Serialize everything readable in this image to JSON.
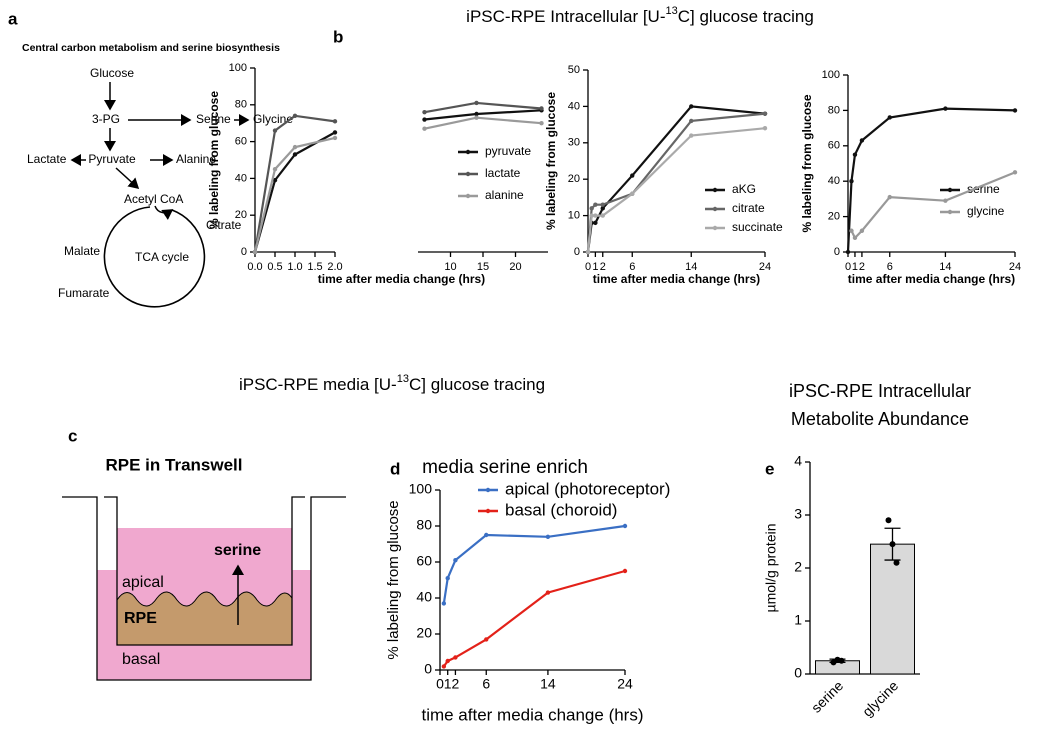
{
  "panel_labels": [
    "a",
    "b",
    "c",
    "d",
    "e"
  ],
  "headings": {
    "tracing": [
      "iPSC-RPE Intracellular [U-",
      "13",
      "C] glucose tracing"
    ],
    "media": [
      "iPSC-RPE media [U-",
      "13",
      "C] glucose tracing"
    ]
  },
  "diagram_a": {
    "title": "Central carbon metabolism and serine biosynthesis",
    "nodes": [
      "Glucose",
      "3-PG",
      "Serine",
      "Glycine",
      "Lactate",
      "Pyruvate",
      "Alanine",
      "Acetyl CoA",
      "Citrate",
      "Malate",
      "TCA cycle",
      "Fumarate"
    ]
  },
  "diagram_c": {
    "title": "RPE in Transwell",
    "labels": [
      "serine",
      "apical",
      "RPE",
      "basal"
    ]
  },
  "chart_data": [
    {
      "type": "line",
      "ylabel": "% labeling from glucose",
      "xlabel": "time after media change (hrs)",
      "x": [
        0,
        0.5,
        1,
        2,
        6,
        14,
        24
      ],
      "xlim": [
        [
          0,
          2
        ],
        [
          5,
          25
        ]
      ],
      "xticks": [
        {
          "value": 0,
          "label": "0.0"
        },
        0.5,
        {
          "value": 1,
          "label": "1.0"
        },
        1.5,
        {
          "value": 2,
          "label": "2.0"
        },
        10,
        15,
        20
      ],
      "ylim": [
        0,
        100
      ],
      "yticks": [
        0,
        20,
        40,
        60,
        80,
        100
      ],
      "legend": "right",
      "series": [
        {
          "name": "pyruvate",
          "color": "#111111",
          "values": [
            0,
            39,
            53,
            65,
            72,
            75,
            77
          ]
        },
        {
          "name": "lactate",
          "color": "#555555",
          "values": [
            0,
            66,
            74,
            71,
            76,
            81,
            78
          ]
        },
        {
          "name": "alanine",
          "color": "#9a9a9a",
          "values": [
            0,
            45,
            57,
            62,
            67,
            73,
            70
          ]
        }
      ]
    },
    {
      "type": "line",
      "ylabel": "% labeling from glucose",
      "xlabel": "time after media change (hrs)",
      "x": [
        0,
        0.5,
        1,
        2,
        6,
        14,
        24
      ],
      "xlim": [
        0,
        24
      ],
      "xticks": [
        0,
        1,
        2,
        6,
        14,
        24
      ],
      "ylim": [
        0,
        50
      ],
      "yticks": [
        0,
        10,
        20,
        30,
        40,
        50
      ],
      "legend": "right",
      "series": [
        {
          "name": "aKG",
          "color": "#111111",
          "values": [
            0,
            8,
            8,
            12,
            21,
            40,
            38
          ]
        },
        {
          "name": "citrate",
          "color": "#666666",
          "values": [
            0,
            12,
            13,
            13,
            16,
            36,
            38
          ]
        },
        {
          "name": "succinate",
          "color": "#aaaaaa",
          "values": [
            0,
            10,
            10,
            10,
            16,
            32,
            34
          ]
        }
      ]
    },
    {
      "type": "line",
      "ylabel": "% labeling from glucose",
      "xlabel": "time after media change (hrs)",
      "x": [
        0,
        0.5,
        1,
        2,
        6,
        14,
        24
      ],
      "xlim": [
        0,
        24
      ],
      "xticks": [
        0,
        1,
        2,
        6,
        14,
        24
      ],
      "ylim": [
        0,
        100
      ],
      "yticks": [
        0,
        20,
        40,
        60,
        80,
        100
      ],
      "legend": "right",
      "series": [
        {
          "name": "serine",
          "color": "#111111",
          "values": [
            0,
            40,
            55,
            63,
            76,
            81,
            80
          ]
        },
        {
          "name": "glycine",
          "color": "#999999",
          "values": [
            null,
            12,
            8,
            12,
            31,
            29,
            45
          ]
        }
      ]
    },
    {
      "type": "line",
      "title": "media serine enrich",
      "ylabel": "% labeling from glucose",
      "xlabel": "time after media change (hrs)",
      "x": [
        0.5,
        1,
        2,
        6,
        14,
        24
      ],
      "xlim": [
        0,
        24
      ],
      "xticks": [
        0,
        1,
        2,
        6,
        14,
        24
      ],
      "ylim": [
        0,
        100
      ],
      "yticks": [
        0,
        20,
        40,
        60,
        80,
        100
      ],
      "legend": "upper right",
      "series": [
        {
          "name": "apical (photoreceptor)",
          "color": "#3a6fc4",
          "values": [
            37,
            51,
            61,
            75,
            74,
            80
          ]
        },
        {
          "name": "basal (choroid)",
          "color": "#e32119",
          "values": [
            2,
            5,
            7,
            17,
            43,
            55
          ]
        }
      ]
    },
    {
      "type": "bar",
      "title_lines": [
        "iPSC-RPE Intracellular",
        "Metabolite Abundance"
      ],
      "ylabel": "µmol/g protein",
      "categories": [
        "serine",
        "glycine"
      ],
      "values": [
        0.25,
        2.45
      ],
      "errors": [
        0.03,
        0.3
      ],
      "points": [
        [
          0.22,
          0.27,
          0.25
        ],
        [
          2.9,
          2.45,
          2.1
        ]
      ],
      "color": "#d9d9d9",
      "ylim": [
        0,
        4
      ],
      "yticks": [
        0,
        1,
        2,
        3,
        4
      ]
    }
  ]
}
